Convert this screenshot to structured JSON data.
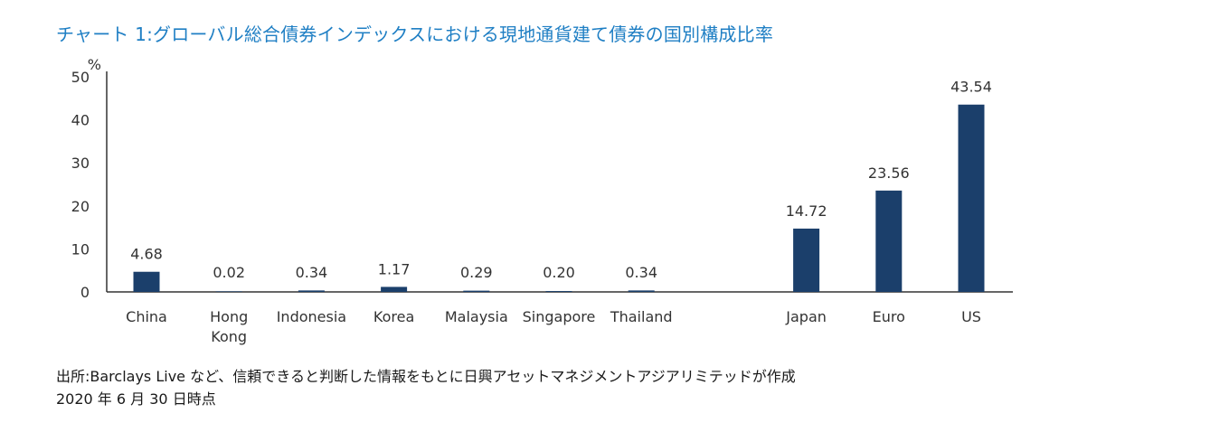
{
  "title": "チャート 1:グローバル総合債券インデックスにおける現地通貨建て債券の国別構成比率",
  "source_line1": "出所:Barclays Live など、信頼できると判断した情報をもとに日興アセットマネジメントアジアリミテッドが作成",
  "source_line2": "2020 年 6 月 30 日時点",
  "colors": {
    "bar": "#1b3f6b",
    "title": "#1f7fc4",
    "axis": "#333333"
  },
  "chart_data": {
    "type": "bar",
    "title": "チャート 1:グローバル総合債券インデックスにおける現地通貨建て債券の国別構成比率",
    "ylabel": "%",
    "xlabel": "",
    "ylim": [
      0,
      50
    ],
    "yticks": [
      0,
      10,
      20,
      30,
      40,
      50
    ],
    "grid": false,
    "categories": [
      "China",
      "Hong Kong",
      "Indonesia",
      "Korea",
      "Malaysia",
      "Singapore",
      "Thailand",
      "",
      "Japan",
      "Euro",
      "US"
    ],
    "category_lines": [
      [
        "China"
      ],
      [
        "Hong",
        "Kong"
      ],
      [
        "Indonesia"
      ],
      [
        "Korea"
      ],
      [
        "Malaysia"
      ],
      [
        "Singapore"
      ],
      [
        "Thailand"
      ],
      [],
      [
        "Japan"
      ],
      [
        "Euro"
      ],
      [
        "US"
      ]
    ],
    "values": [
      4.68,
      0.02,
      0.34,
      1.17,
      0.29,
      0.2,
      0.34,
      null,
      14.72,
      23.56,
      43.54
    ],
    "data_labels": [
      "4.68",
      "0.02",
      "0.34",
      "1.17",
      "0.29",
      "0.20",
      "0.34",
      "",
      "14.72",
      "23.56",
      "43.54"
    ]
  }
}
